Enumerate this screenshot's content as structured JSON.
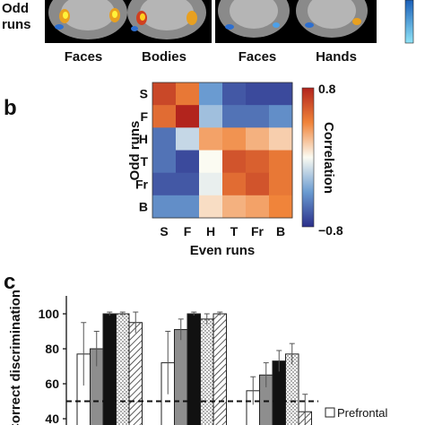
{
  "panel_a": {
    "row_label_1": "Odd",
    "row_label_2": "runs",
    "captions": [
      "Faces",
      "Bodies",
      "Faces",
      "Hands"
    ]
  },
  "panel_b": {
    "letter": "b",
    "colorbar_max": "0.8",
    "colorbar_min": "−0.8",
    "colorbar_label": "Correlation"
  },
  "panel_c": {
    "letter": "c",
    "legend": [
      "Prefrontal"
    ]
  },
  "chart_data": [
    {
      "type": "heatmap",
      "xlabel": "Even runs",
      "ylabel": "Odd runs",
      "x_categories": [
        "S",
        "F",
        "H",
        "T",
        "Fr",
        "B"
      ],
      "y_categories": [
        "S",
        "F",
        "H",
        "T",
        "Fr",
        "B"
      ],
      "values": [
        [
          0.65,
          0.45,
          -0.4,
          -0.65,
          -0.7,
          -0.7
        ],
        [
          0.5,
          0.8,
          -0.25,
          -0.55,
          -0.55,
          -0.45
        ],
        [
          -0.55,
          -0.15,
          0.3,
          0.35,
          0.25,
          0.15
        ],
        [
          -0.55,
          -0.7,
          0.0,
          0.6,
          0.55,
          0.45
        ],
        [
          -0.65,
          -0.65,
          -0.05,
          0.5,
          0.6,
          0.45
        ],
        [
          -0.45,
          -0.45,
          0.1,
          0.25,
          0.3,
          0.4
        ]
      ],
      "zlim": [
        -0.8,
        0.8
      ],
      "colorbar_label": "Correlation"
    },
    {
      "type": "bar",
      "ylabel": "Correct discrimination",
      "yticks": [
        40,
        60,
        80,
        100
      ],
      "ylim": [
        40,
        110
      ],
      "chance_line": 50,
      "groups": [
        {
          "values": [
            77,
            80,
            100,
            100,
            95
          ],
          "errors": [
            18,
            10,
            1,
            1,
            6
          ]
        },
        {
          "values": [
            72,
            91,
            100,
            97,
            100
          ],
          "errors": [
            18,
            6,
            1,
            3,
            1
          ]
        },
        {
          "values": [
            56,
            65,
            73,
            77,
            44
          ],
          "errors": [
            8,
            7,
            6,
            6,
            10
          ]
        }
      ],
      "bar_styles": [
        "white",
        "gray",
        "black",
        "dotted",
        "hatched"
      ],
      "legend": [
        "Prefrontal"
      ]
    }
  ]
}
